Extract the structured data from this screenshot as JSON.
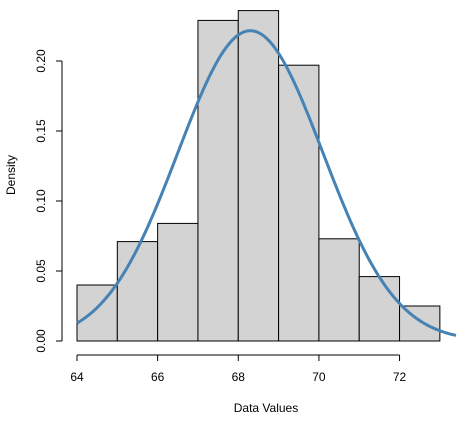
{
  "chart_data": {
    "type": "bar",
    "subtype": "histogram",
    "xlabel": "Data Values",
    "ylabel": "Density",
    "xlim": [
      64,
      73.4
    ],
    "ylim": [
      0,
      0.24
    ],
    "x_ticks": [
      64,
      66,
      68,
      70,
      72
    ],
    "y_ticks": [
      "0.00",
      "0.05",
      "0.10",
      "0.15",
      "0.20"
    ],
    "bins": [
      {
        "start": 64,
        "end": 65,
        "density": 0.04
      },
      {
        "start": 65,
        "end": 66,
        "density": 0.071
      },
      {
        "start": 66,
        "end": 67,
        "density": 0.084
      },
      {
        "start": 67,
        "end": 68,
        "density": 0.229
      },
      {
        "start": 68,
        "end": 69,
        "density": 0.236
      },
      {
        "start": 69,
        "end": 70,
        "density": 0.197
      },
      {
        "start": 70,
        "end": 71,
        "density": 0.073
      },
      {
        "start": 71,
        "end": 72,
        "density": 0.046
      },
      {
        "start": 72,
        "end": 73,
        "density": 0.025
      }
    ],
    "density_curve": {
      "distribution": "normal",
      "mean": 68.3,
      "sd": 1.8,
      "color": "#4682b4"
    },
    "bar_fill": "#d3d3d3",
    "grid": false
  }
}
